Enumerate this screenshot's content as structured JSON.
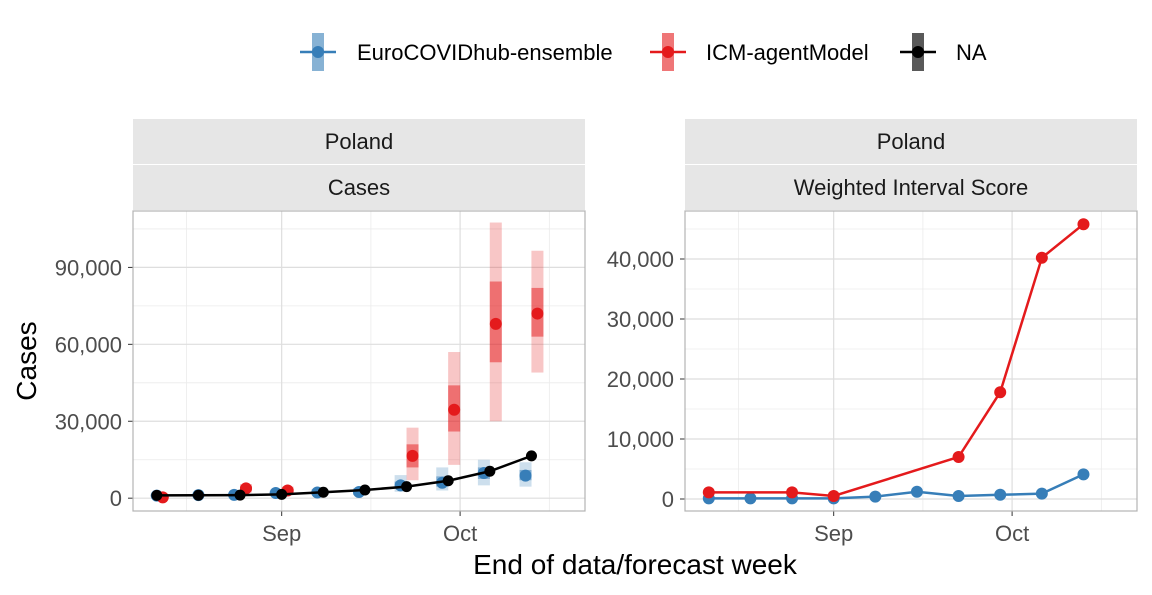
{
  "legend": {
    "items": [
      {
        "name": "EuroCOVIDhub-ensemble",
        "color": "#377EB8"
      },
      {
        "name": "ICM-agentModel",
        "color": "#E41A1C"
      },
      {
        "name": "NA",
        "color": "#000000"
      }
    ]
  },
  "axes": {
    "xlabel": "End of data/forecast week",
    "ylabel": "Cases"
  },
  "chart_data": [
    {
      "type": "line",
      "panel": "left",
      "strip": [
        "Poland",
        "Cases"
      ],
      "x_ticks": [
        {
          "date": "2021-09-01",
          "label": "Sep"
        },
        {
          "date": "2021-10-01",
          "label": "Oct"
        }
      ],
      "xlim": [
        "2021-08-07",
        "2021-10-22"
      ],
      "y_ticks": [
        0,
        30000,
        60000,
        90000
      ],
      "y_tick_labels": [
        "0",
        "30,000",
        "60,000",
        "90,000"
      ],
      "ylim": [
        -5000,
        112000
      ],
      "grid": true,
      "observed": [
        {
          "x": "2021-08-11",
          "y": 1100
        },
        {
          "x": "2021-08-18",
          "y": 1150
        },
        {
          "x": "2021-08-25",
          "y": 1200
        },
        {
          "x": "2021-09-01",
          "y": 1500
        },
        {
          "x": "2021-09-08",
          "y": 2300
        },
        {
          "x": "2021-09-15",
          "y": 3200
        },
        {
          "x": "2021-09-22",
          "y": 4500
        },
        {
          "x": "2021-09-29",
          "y": 6800
        },
        {
          "x": "2021-10-06",
          "y": 10500
        },
        {
          "x": "2021-10-13",
          "y": 16500
        }
      ],
      "forecasts": [
        {
          "model": "EuroCOVIDhub-ensemble",
          "points": [
            {
              "x": "2021-08-11",
              "median": 1000,
              "inner": [
                700,
                1300
              ],
              "outer": [
                400,
                1700
              ]
            },
            {
              "x": "2021-08-18",
              "median": 1200,
              "inner": [
                900,
                1500
              ],
              "outer": [
                600,
                1900
              ]
            },
            {
              "x": "2021-08-24",
              "median": 1300,
              "inner": [
                1000,
                1600
              ],
              "outer": [
                700,
                2000
              ]
            },
            {
              "x": "2021-08-31",
              "median": 2000,
              "inner": [
                1500,
                2500
              ],
              "outer": [
                1000,
                3000
              ]
            },
            {
              "x": "2021-09-07",
              "median": 2200,
              "inner": [
                1700,
                2800
              ],
              "outer": [
                1200,
                3500
              ]
            },
            {
              "x": "2021-09-14",
              "median": 2400,
              "inner": [
                1800,
                3100
              ],
              "outer": [
                1200,
                4000
              ]
            },
            {
              "x": "2021-09-21",
              "median": 5000,
              "inner": [
                3800,
                6500
              ],
              "outer": [
                2500,
                9000
              ]
            },
            {
              "x": "2021-09-28",
              "median": 6000,
              "inner": [
                4500,
                8500
              ],
              "outer": [
                3000,
                12000
              ]
            },
            {
              "x": "2021-10-05",
              "median": 9800,
              "inner": [
                7500,
                12000
              ],
              "outer": [
                5000,
                15000
              ]
            },
            {
              "x": "2021-10-12",
              "median": 8800,
              "inner": [
                7000,
                11000
              ],
              "outer": [
                4500,
                14000
              ]
            }
          ]
        },
        {
          "model": "ICM-agentModel",
          "points": [
            {
              "x": "2021-08-12",
              "median": 300,
              "inner": [
                150,
                500
              ],
              "outer": [
                50,
                800
              ]
            },
            {
              "x": "2021-08-26",
              "median": 3800,
              "inner": [
                3000,
                4600
              ],
              "outer": [
                2200,
                5500
              ]
            },
            {
              "x": "2021-09-02",
              "median": 3000,
              "inner": [
                2300,
                3700
              ],
              "outer": [
                1600,
                4500
              ]
            },
            {
              "x": "2021-09-23",
              "median": 16500,
              "inner": [
                12000,
                21000
              ],
              "outer": [
                7000,
                27500
              ]
            },
            {
              "x": "2021-09-30",
              "median": 34500,
              "inner": [
                26000,
                44000
              ],
              "outer": [
                13000,
                57000
              ]
            },
            {
              "x": "2021-10-07",
              "median": 68000,
              "inner": [
                53000,
                84500
              ],
              "outer": [
                30000,
                107500
              ]
            },
            {
              "x": "2021-10-14",
              "median": 72000,
              "inner": [
                63000,
                82000
              ],
              "outer": [
                49000,
                96500
              ]
            }
          ]
        }
      ]
    },
    {
      "type": "line",
      "panel": "right",
      "strip": [
        "Poland",
        "Weighted Interval Score"
      ],
      "x_ticks": [
        {
          "date": "2021-09-01",
          "label": "Sep"
        },
        {
          "date": "2021-10-01",
          "label": "Oct"
        }
      ],
      "xlim": [
        "2021-08-07",
        "2021-10-22"
      ],
      "y_ticks": [
        0,
        10000,
        20000,
        30000,
        40000
      ],
      "y_tick_labels": [
        "0",
        "10,000",
        "20,000",
        "30,000",
        "40,000"
      ],
      "ylim": [
        -2000,
        48000
      ],
      "grid": true,
      "series": [
        {
          "name": "EuroCOVIDhub-ensemble",
          "points": [
            {
              "x": "2021-08-11",
              "y": 100
            },
            {
              "x": "2021-08-18",
              "y": 100
            },
            {
              "x": "2021-08-25",
              "y": 100
            },
            {
              "x": "2021-09-01",
              "y": 100
            },
            {
              "x": "2021-09-08",
              "y": 400
            },
            {
              "x": "2021-09-15",
              "y": 1200
            },
            {
              "x": "2021-09-22",
              "y": 500
            },
            {
              "x": "2021-09-29",
              "y": 700
            },
            {
              "x": "2021-10-06",
              "y": 900
            },
            {
              "x": "2021-10-13",
              "y": 4100
            }
          ]
        },
        {
          "name": "ICM-agentModel",
          "points": [
            {
              "x": "2021-08-11",
              "y": 1100
            },
            {
              "x": "2021-08-25",
              "y": 1100
            },
            {
              "x": "2021-09-01",
              "y": 500
            },
            {
              "x": "2021-09-22",
              "y": 7000
            },
            {
              "x": "2021-09-29",
              "y": 17800
            },
            {
              "x": "2021-10-06",
              "y": 40200
            },
            {
              "x": "2021-10-13",
              "y": 45800
            }
          ]
        }
      ]
    }
  ]
}
